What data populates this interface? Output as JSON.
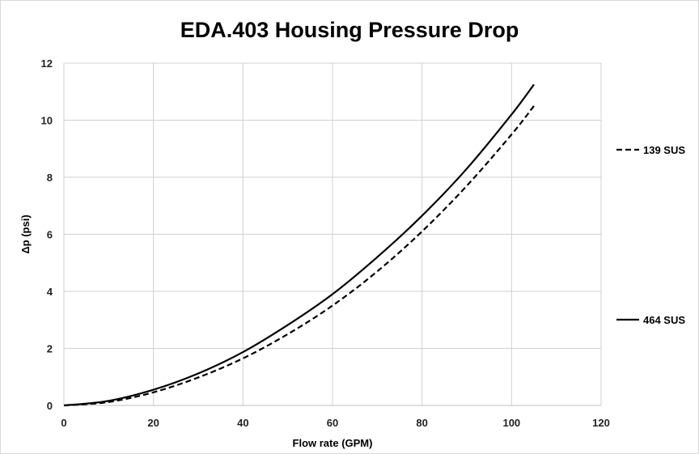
{
  "chart_data": {
    "type": "line",
    "title": "EDA.403 Housing Pressure Drop",
    "xlabel": "Flow rate (GPM)",
    "ylabel": "Δp (psi)",
    "xlim": [
      0,
      120
    ],
    "ylim": [
      0,
      12
    ],
    "xticks": [
      0,
      20,
      40,
      60,
      80,
      100,
      120
    ],
    "yticks": [
      0,
      2,
      4,
      6,
      8,
      10,
      12
    ],
    "grid": true,
    "legend_position": "right",
    "series": [
      {
        "name": "139 SUS",
        "style": "dashed",
        "color": "#000000",
        "x": [
          0,
          10,
          20,
          30,
          40,
          50,
          60,
          70,
          80,
          90,
          100,
          105
        ],
        "y": [
          0,
          0.12,
          0.46,
          0.98,
          1.65,
          2.5,
          3.5,
          4.7,
          6.1,
          7.7,
          9.5,
          10.5
        ]
      },
      {
        "name": "464 SUS",
        "style": "solid",
        "color": "#000000",
        "x": [
          0,
          10,
          20,
          30,
          40,
          50,
          60,
          70,
          80,
          90,
          100,
          105
        ],
        "y": [
          0,
          0.16,
          0.55,
          1.12,
          1.87,
          2.82,
          3.9,
          5.2,
          6.65,
          8.3,
          10.2,
          11.25
        ]
      }
    ]
  }
}
